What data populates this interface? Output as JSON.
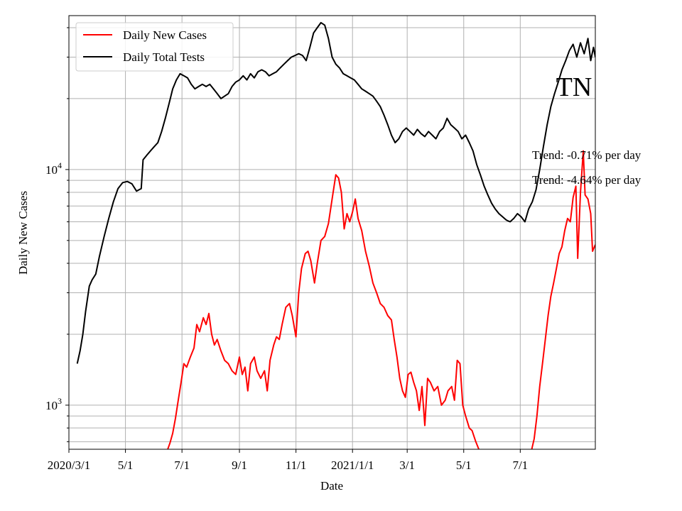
{
  "chart_data": {
    "type": "line",
    "xlabel": "Date",
    "ylabel": "Daily New Cases",
    "y_scale": "log",
    "ylim": [
      650,
      45000
    ],
    "xlim": [
      "2020-03-01",
      "2021-09-20"
    ],
    "grid": true,
    "legend_position": "top-left",
    "x_ticks": [
      {
        "date": "2020-03-01",
        "label": "2020/3/1"
      },
      {
        "date": "2020-05-01",
        "label": "5/1"
      },
      {
        "date": "2020-07-01",
        "label": "7/1"
      },
      {
        "date": "2020-09-01",
        "label": "9/1"
      },
      {
        "date": "2020-11-01",
        "label": "11/1"
      },
      {
        "date": "2021-01-01",
        "label": "2021/1/1"
      },
      {
        "date": "2021-03-01",
        "label": "3/1"
      },
      {
        "date": "2021-05-01",
        "label": "5/1"
      },
      {
        "date": "2021-07-01",
        "label": "7/1"
      }
    ],
    "y_ticks": [
      {
        "value": 1000,
        "base": "10",
        "exp": "3"
      },
      {
        "value": 10000,
        "base": "10",
        "exp": "4"
      }
    ],
    "annotations": [
      "Trend: -0.71% per day",
      "Trend: -4.64% per day"
    ],
    "watermark": "TN",
    "series": [
      {
        "name": "Daily New Cases",
        "color": "#ff0000",
        "points": [
          [
            "2020-06-15",
            640
          ],
          [
            "2020-06-18",
            690
          ],
          [
            "2020-06-21",
            760
          ],
          [
            "2020-06-24",
            880
          ],
          [
            "2020-06-27",
            1050
          ],
          [
            "2020-06-30",
            1250
          ],
          [
            "2020-07-03",
            1500
          ],
          [
            "2020-07-06",
            1450
          ],
          [
            "2020-07-10",
            1600
          ],
          [
            "2020-07-14",
            1750
          ],
          [
            "2020-07-17",
            2200
          ],
          [
            "2020-07-20",
            2050
          ],
          [
            "2020-07-24",
            2350
          ],
          [
            "2020-07-27",
            2200
          ],
          [
            "2020-07-30",
            2450
          ],
          [
            "2020-08-02",
            2000
          ],
          [
            "2020-08-05",
            1800
          ],
          [
            "2020-08-08",
            1900
          ],
          [
            "2020-08-12",
            1700
          ],
          [
            "2020-08-16",
            1550
          ],
          [
            "2020-08-20",
            1500
          ],
          [
            "2020-08-24",
            1400
          ],
          [
            "2020-08-28",
            1350
          ],
          [
            "2020-09-01",
            1600
          ],
          [
            "2020-09-04",
            1350
          ],
          [
            "2020-09-07",
            1450
          ],
          [
            "2020-09-10",
            1150
          ],
          [
            "2020-09-13",
            1500
          ],
          [
            "2020-09-17",
            1600
          ],
          [
            "2020-09-20",
            1400
          ],
          [
            "2020-09-24",
            1300
          ],
          [
            "2020-09-28",
            1400
          ],
          [
            "2020-10-01",
            1150
          ],
          [
            "2020-10-04",
            1550
          ],
          [
            "2020-10-08",
            1800
          ],
          [
            "2020-10-11",
            1950
          ],
          [
            "2020-10-14",
            1900
          ],
          [
            "2020-10-17",
            2200
          ],
          [
            "2020-10-21",
            2600
          ],
          [
            "2020-10-25",
            2700
          ],
          [
            "2020-10-28",
            2400
          ],
          [
            "2020-11-01",
            1950
          ],
          [
            "2020-11-04",
            3000
          ],
          [
            "2020-11-07",
            3800
          ],
          [
            "2020-11-11",
            4400
          ],
          [
            "2020-11-14",
            4500
          ],
          [
            "2020-11-17",
            4100
          ],
          [
            "2020-11-21",
            3300
          ],
          [
            "2020-11-24",
            4000
          ],
          [
            "2020-11-28",
            5000
          ],
          [
            "2020-12-02",
            5200
          ],
          [
            "2020-12-06",
            5900
          ],
          [
            "2020-12-10",
            7500
          ],
          [
            "2020-12-14",
            9500
          ],
          [
            "2020-12-17",
            9200
          ],
          [
            "2020-12-20",
            8000
          ],
          [
            "2020-12-23",
            5600
          ],
          [
            "2020-12-26",
            6500
          ],
          [
            "2020-12-29",
            6000
          ],
          [
            "2021-01-01",
            6600
          ],
          [
            "2021-01-04",
            7500
          ],
          [
            "2021-01-07",
            6200
          ],
          [
            "2021-01-11",
            5500
          ],
          [
            "2021-01-15",
            4500
          ],
          [
            "2021-01-19",
            3900
          ],
          [
            "2021-01-23",
            3300
          ],
          [
            "2021-01-27",
            3000
          ],
          [
            "2021-01-31",
            2700
          ],
          [
            "2021-02-04",
            2600
          ],
          [
            "2021-02-08",
            2400
          ],
          [
            "2021-02-12",
            2300
          ],
          [
            "2021-02-15",
            1900
          ],
          [
            "2021-02-18",
            1600
          ],
          [
            "2021-02-21",
            1300
          ],
          [
            "2021-02-24",
            1150
          ],
          [
            "2021-02-27",
            1080
          ],
          [
            "2021-03-02",
            1350
          ],
          [
            "2021-03-05",
            1380
          ],
          [
            "2021-03-08",
            1250
          ],
          [
            "2021-03-11",
            1150
          ],
          [
            "2021-03-14",
            950
          ],
          [
            "2021-03-17",
            1200
          ],
          [
            "2021-03-20",
            820
          ],
          [
            "2021-03-23",
            1300
          ],
          [
            "2021-03-26",
            1250
          ],
          [
            "2021-03-30",
            1150
          ],
          [
            "2021-04-03",
            1200
          ],
          [
            "2021-04-07",
            1000
          ],
          [
            "2021-04-11",
            1050
          ],
          [
            "2021-04-14",
            1150
          ],
          [
            "2021-04-18",
            1200
          ],
          [
            "2021-04-21",
            1050
          ],
          [
            "2021-04-24",
            1550
          ],
          [
            "2021-04-27",
            1500
          ],
          [
            "2021-04-30",
            1000
          ],
          [
            "2021-05-03",
            900
          ],
          [
            "2021-05-07",
            800
          ],
          [
            "2021-05-10",
            780
          ],
          [
            "2021-05-14",
            700
          ],
          [
            "2021-05-18",
            640
          ]
        ]
      },
      {
        "name": "Daily New Cases",
        "color": "#ff0000",
        "points": [
          [
            "2021-07-13",
            640
          ],
          [
            "2021-07-16",
            720
          ],
          [
            "2021-07-19",
            900
          ],
          [
            "2021-07-22",
            1200
          ],
          [
            "2021-07-25",
            1500
          ],
          [
            "2021-07-28",
            1900
          ],
          [
            "2021-07-31",
            2400
          ],
          [
            "2021-08-03",
            2900
          ],
          [
            "2021-08-06",
            3300
          ],
          [
            "2021-08-09",
            3800
          ],
          [
            "2021-08-12",
            4400
          ],
          [
            "2021-08-15",
            4700
          ],
          [
            "2021-08-18",
            5500
          ],
          [
            "2021-08-21",
            6200
          ],
          [
            "2021-08-24",
            6000
          ],
          [
            "2021-08-27",
            7600
          ],
          [
            "2021-08-30",
            8500
          ],
          [
            "2021-09-01",
            4200
          ],
          [
            "2021-09-04",
            8000
          ],
          [
            "2021-09-07",
            12000
          ],
          [
            "2021-09-09",
            7800
          ],
          [
            "2021-09-12",
            7500
          ],
          [
            "2021-09-15",
            6500
          ],
          [
            "2021-09-17",
            4500
          ],
          [
            "2021-09-20",
            4800
          ]
        ]
      },
      {
        "name": "Daily Total Tests",
        "color": "#000000",
        "points": [
          [
            "2020-03-10",
            1500
          ],
          [
            "2020-03-13",
            1700
          ],
          [
            "2020-03-16",
            2000
          ],
          [
            "2020-03-19",
            2500
          ],
          [
            "2020-03-23",
            3200
          ],
          [
            "2020-03-26",
            3400
          ],
          [
            "2020-03-30",
            3600
          ],
          [
            "2020-04-03",
            4300
          ],
          [
            "2020-04-08",
            5200
          ],
          [
            "2020-04-13",
            6200
          ],
          [
            "2020-04-18",
            7300
          ],
          [
            "2020-04-23",
            8300
          ],
          [
            "2020-04-28",
            8800
          ],
          [
            "2020-05-03",
            8900
          ],
          [
            "2020-05-08",
            8700
          ],
          [
            "2020-05-13",
            8100
          ],
          [
            "2020-05-18",
            8300
          ],
          [
            "2020-05-20",
            11000
          ],
          [
            "2020-05-24",
            11500
          ],
          [
            "2020-05-28",
            12000
          ],
          [
            "2020-06-01",
            12500
          ],
          [
            "2020-06-05",
            13000
          ],
          [
            "2020-06-09",
            14500
          ],
          [
            "2020-06-13",
            16500
          ],
          [
            "2020-06-17",
            19000
          ],
          [
            "2020-06-21",
            22000
          ],
          [
            "2020-06-25",
            24000
          ],
          [
            "2020-06-29",
            25500
          ],
          [
            "2020-07-03",
            25000
          ],
          [
            "2020-07-07",
            24500
          ],
          [
            "2020-07-11",
            23000
          ],
          [
            "2020-07-15",
            22000
          ],
          [
            "2020-07-19",
            22500
          ],
          [
            "2020-07-23",
            23000
          ],
          [
            "2020-07-27",
            22500
          ],
          [
            "2020-07-31",
            23000
          ],
          [
            "2020-08-04",
            22000
          ],
          [
            "2020-08-08",
            21000
          ],
          [
            "2020-08-12",
            20000
          ],
          [
            "2020-08-16",
            20500
          ],
          [
            "2020-08-20",
            21000
          ],
          [
            "2020-08-24",
            22500
          ],
          [
            "2020-08-28",
            23500
          ],
          [
            "2020-09-01",
            24000
          ],
          [
            "2020-09-05",
            25000
          ],
          [
            "2020-09-09",
            24000
          ],
          [
            "2020-09-13",
            25500
          ],
          [
            "2020-09-17",
            24500
          ],
          [
            "2020-09-21",
            26000
          ],
          [
            "2020-09-25",
            26500
          ],
          [
            "2020-09-29",
            26000
          ],
          [
            "2020-10-03",
            25000
          ],
          [
            "2020-10-07",
            25500
          ],
          [
            "2020-10-11",
            26000
          ],
          [
            "2020-10-15",
            27000
          ],
          [
            "2020-10-19",
            28000
          ],
          [
            "2020-10-23",
            29000
          ],
          [
            "2020-10-27",
            30000
          ],
          [
            "2020-10-31",
            30500
          ],
          [
            "2020-11-04",
            31000
          ],
          [
            "2020-11-08",
            30500
          ],
          [
            "2020-11-12",
            29000
          ],
          [
            "2020-11-16",
            33000
          ],
          [
            "2020-11-20",
            38000
          ],
          [
            "2020-11-24",
            40000
          ],
          [
            "2020-11-28",
            42000
          ],
          [
            "2020-12-02",
            41000
          ],
          [
            "2020-12-06",
            36000
          ],
          [
            "2020-12-10",
            30000
          ],
          [
            "2020-12-14",
            28000
          ],
          [
            "2020-12-18",
            27000
          ],
          [
            "2020-12-22",
            25500
          ],
          [
            "2020-12-26",
            25000
          ],
          [
            "2020-12-30",
            24500
          ],
          [
            "2021-01-03",
            24000
          ],
          [
            "2021-01-07",
            23000
          ],
          [
            "2021-01-11",
            22000
          ],
          [
            "2021-01-15",
            21500
          ],
          [
            "2021-01-19",
            21000
          ],
          [
            "2021-01-23",
            20500
          ],
          [
            "2021-01-27",
            19500
          ],
          [
            "2021-01-31",
            18500
          ],
          [
            "2021-02-04",
            17000
          ],
          [
            "2021-02-08",
            15500
          ],
          [
            "2021-02-12",
            14000
          ],
          [
            "2021-02-16",
            13000
          ],
          [
            "2021-02-20",
            13500
          ],
          [
            "2021-02-24",
            14500
          ],
          [
            "2021-02-28",
            15000
          ],
          [
            "2021-03-04",
            14500
          ],
          [
            "2021-03-08",
            14000
          ],
          [
            "2021-03-12",
            14800
          ],
          [
            "2021-03-16",
            14200
          ],
          [
            "2021-03-20",
            13800
          ],
          [
            "2021-03-24",
            14500
          ],
          [
            "2021-03-28",
            14000
          ],
          [
            "2021-04-01",
            13500
          ],
          [
            "2021-04-05",
            14500
          ],
          [
            "2021-04-09",
            15000
          ],
          [
            "2021-04-13",
            16500
          ],
          [
            "2021-04-17",
            15500
          ],
          [
            "2021-04-21",
            15000
          ],
          [
            "2021-04-25",
            14500
          ],
          [
            "2021-04-29",
            13500
          ],
          [
            "2021-05-03",
            14000
          ],
          [
            "2021-05-07",
            13000
          ],
          [
            "2021-05-11",
            12000
          ],
          [
            "2021-05-15",
            10500
          ],
          [
            "2021-05-19",
            9500
          ],
          [
            "2021-05-23",
            8500
          ],
          [
            "2021-05-27",
            7800
          ],
          [
            "2021-05-31",
            7200
          ],
          [
            "2021-06-04",
            6800
          ],
          [
            "2021-06-08",
            6500
          ],
          [
            "2021-06-12",
            6300
          ],
          [
            "2021-06-16",
            6100
          ],
          [
            "2021-06-20",
            6000
          ],
          [
            "2021-06-24",
            6200
          ],
          [
            "2021-06-28",
            6500
          ],
          [
            "2021-07-02",
            6300
          ],
          [
            "2021-07-06",
            6000
          ],
          [
            "2021-07-10",
            6800
          ],
          [
            "2021-07-14",
            7300
          ],
          [
            "2021-07-18",
            8200
          ],
          [
            "2021-07-22",
            10000
          ],
          [
            "2021-07-26",
            12500
          ],
          [
            "2021-07-30",
            15500
          ],
          [
            "2021-08-03",
            18500
          ],
          [
            "2021-08-07",
            21000
          ],
          [
            "2021-08-11",
            23500
          ],
          [
            "2021-08-15",
            26500
          ],
          [
            "2021-08-19",
            29000
          ],
          [
            "2021-08-23",
            32000
          ],
          [
            "2021-08-27",
            34000
          ],
          [
            "2021-08-31",
            30000
          ],
          [
            "2021-09-04",
            34500
          ],
          [
            "2021-09-08",
            31000
          ],
          [
            "2021-09-12",
            36000
          ],
          [
            "2021-09-15",
            29000
          ],
          [
            "2021-09-18",
            33000
          ],
          [
            "2021-09-20",
            30000
          ]
        ]
      }
    ],
    "legend": [
      {
        "label": "Daily New Cases",
        "color": "#ff0000"
      },
      {
        "label": "Daily Total Tests",
        "color": "#000000"
      }
    ]
  }
}
